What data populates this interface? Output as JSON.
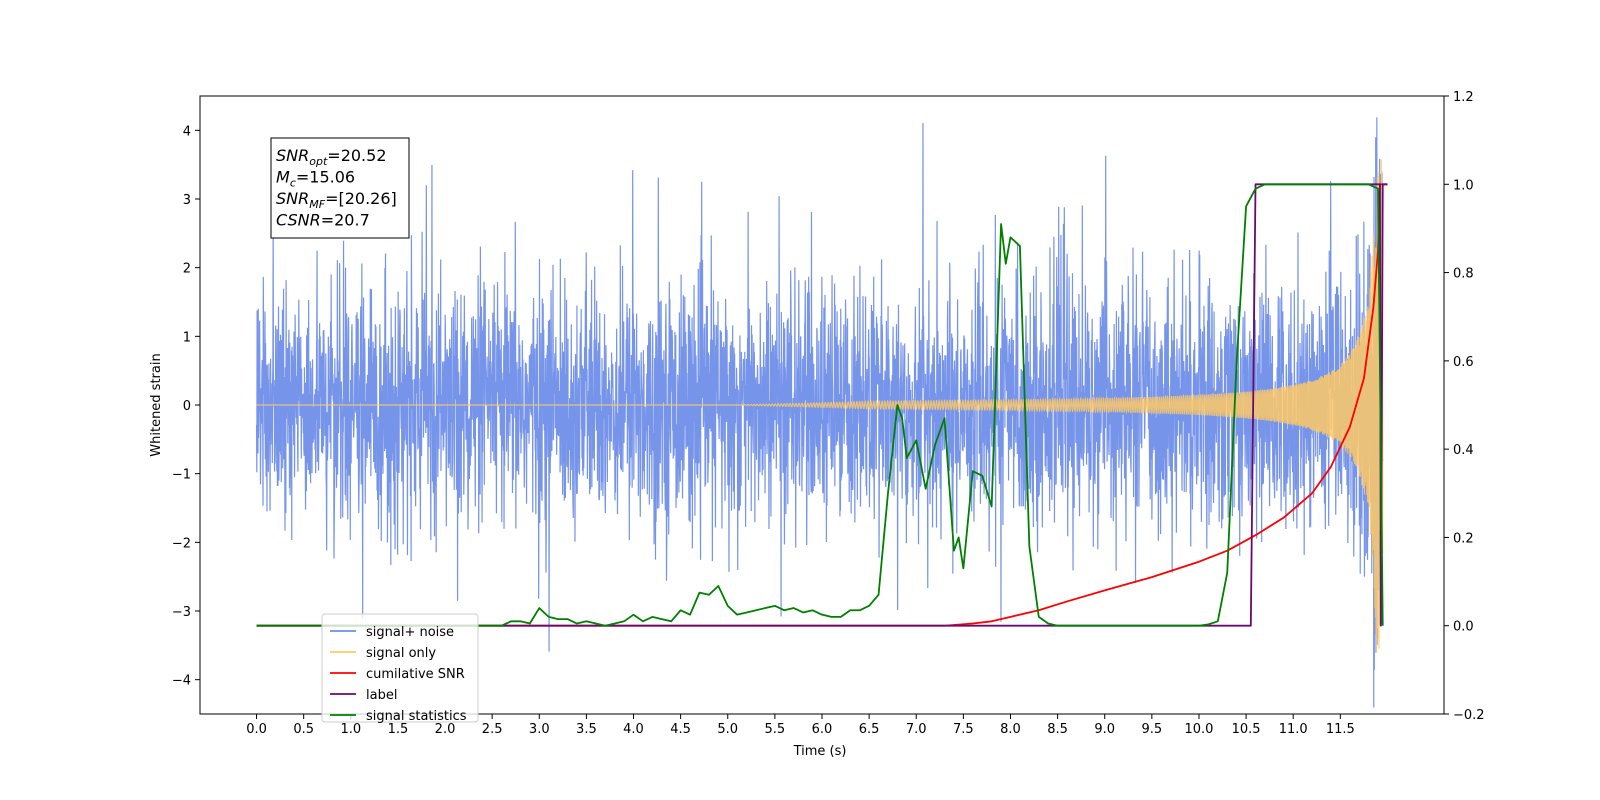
{
  "chart_data": {
    "type": "line",
    "xlabel": "Time (s)",
    "ylabel_left": "Whitened strain",
    "xlim": [
      -0.6,
      12.6
    ],
    "ylim_left": [
      -4.5,
      4.5
    ],
    "ylim_right": [
      -0.2,
      1.2
    ],
    "x_ticks": [
      0.0,
      0.5,
      1.0,
      1.5,
      2.0,
      2.5,
      3.0,
      3.5,
      4.0,
      4.5,
      5.0,
      5.5,
      6.0,
      6.5,
      7.0,
      7.5,
      8.0,
      8.5,
      9.0,
      9.5,
      10.0,
      10.5,
      11.0,
      11.5
    ],
    "x_tick_labels": [
      "0.0",
      "0.5",
      "1.0",
      "1.5",
      "2.0",
      "2.5",
      "3.0",
      "3.5",
      "4.0",
      "4.5",
      "5.0",
      "5.5",
      "6.0",
      "6.5",
      "7.0",
      "7.5",
      "8.0",
      "8.5",
      "9.0",
      "9.5",
      "10.0",
      "10.5",
      "11.0",
      "11.5"
    ],
    "y_ticks_left": [
      -4,
      -3,
      -2,
      -1,
      0,
      1,
      2,
      3,
      4
    ],
    "y_tick_labels_left": [
      "−4",
      "−3",
      "−2",
      "−1",
      "0",
      "1",
      "2",
      "3",
      "4"
    ],
    "y_ticks_right": [
      -0.2,
      0.0,
      0.2,
      0.4,
      0.6,
      0.8,
      1.0,
      1.2
    ],
    "y_tick_labels_right": [
      "−0.2",
      "0.0",
      "0.2",
      "0.4",
      "0.6",
      "0.8",
      "1.0",
      "1.2"
    ],
    "legend_position": "lower-left",
    "grid": false,
    "annotation": {
      "lines": [
        {
          "var": "SNR",
          "sub": "opt",
          "rest": "=20.52"
        },
        {
          "var": "M",
          "sub": "c",
          "rest": "=15.06"
        },
        {
          "var": "SNR",
          "sub": "MF",
          "rest": "=[20.26]"
        },
        {
          "var": "CSNR",
          "sub": "",
          "rest": "=20.7"
        }
      ]
    },
    "series": [
      {
        "name": "signal+ noise",
        "axis": "left",
        "color": "#6f8ee8",
        "description_range": {
          "x_start": 0.0,
          "x_end": 11.95,
          "typical_min": -2.0,
          "typical_max": 2.0,
          "peak_max": 4.07,
          "peak_min": -4.1
        }
      },
      {
        "name": "signal only",
        "axis": "left",
        "color": "#ffc966",
        "x_start": 0.0,
        "x_end": 11.95,
        "amplitude_final": 3.6
      },
      {
        "name": "cumilative SNR",
        "axis": "right",
        "color": "#ff0000",
        "x": [
          0.0,
          7.3,
          7.6,
          7.8,
          8.0,
          8.3,
          8.6,
          9.0,
          9.5,
          10.0,
          10.3,
          10.6,
          10.9,
          11.2,
          11.4,
          11.6,
          11.75,
          11.85,
          11.9,
          11.92,
          12.0
        ],
        "y": [
          0.0,
          0.0,
          0.005,
          0.01,
          0.02,
          0.035,
          0.055,
          0.08,
          0.11,
          0.145,
          0.17,
          0.205,
          0.245,
          0.3,
          0.36,
          0.45,
          0.56,
          0.72,
          0.85,
          1.0,
          1.0
        ]
      },
      {
        "name": "label",
        "axis": "right",
        "color": "#6a0a70",
        "x": [
          0.0,
          10.55,
          10.6,
          11.92,
          11.93,
          11.95,
          12.0
        ],
        "y": [
          0.0,
          0.0,
          1.0,
          1.0,
          0.0,
          1.0,
          1.0
        ]
      },
      {
        "name": "signal statistics",
        "axis": "right",
        "color": "#008000",
        "x": [
          0.0,
          2.6,
          2.7,
          2.8,
          2.9,
          3.0,
          3.1,
          3.2,
          3.3,
          3.4,
          3.5,
          3.6,
          3.7,
          3.8,
          3.9,
          4.0,
          4.1,
          4.2,
          4.3,
          4.4,
          4.5,
          4.6,
          4.7,
          4.8,
          4.9,
          5.0,
          5.1,
          5.2,
          5.3,
          5.4,
          5.5,
          5.6,
          5.7,
          5.8,
          5.9,
          6.0,
          6.1,
          6.2,
          6.3,
          6.4,
          6.5,
          6.6,
          6.7,
          6.8,
          6.85,
          6.9,
          7.0,
          7.1,
          7.2,
          7.3,
          7.4,
          7.45,
          7.5,
          7.6,
          7.7,
          7.8,
          7.9,
          7.95,
          8.0,
          8.1,
          8.2,
          8.3,
          8.4,
          8.5,
          9.0,
          10.0,
          10.1,
          10.2,
          10.3,
          10.4,
          10.5,
          10.6,
          10.7,
          10.8,
          10.9,
          11.0,
          11.5,
          11.8,
          11.9,
          11.95
        ],
        "y": [
          0.0,
          0.0,
          0.01,
          0.01,
          0.005,
          0.04,
          0.02,
          0.015,
          0.015,
          0.005,
          0.01,
          0.005,
          0.0,
          0.005,
          0.01,
          0.025,
          0.01,
          0.02,
          0.015,
          0.01,
          0.035,
          0.025,
          0.075,
          0.07,
          0.09,
          0.045,
          0.025,
          0.03,
          0.035,
          0.04,
          0.045,
          0.035,
          0.04,
          0.03,
          0.035,
          0.025,
          0.02,
          0.02,
          0.035,
          0.035,
          0.045,
          0.07,
          0.3,
          0.5,
          0.47,
          0.38,
          0.42,
          0.31,
          0.41,
          0.47,
          0.17,
          0.2,
          0.13,
          0.35,
          0.34,
          0.27,
          0.91,
          0.82,
          0.88,
          0.86,
          0.18,
          0.02,
          0.005,
          0.0,
          0.0,
          0.0,
          0.003,
          0.01,
          0.12,
          0.6,
          0.95,
          0.99,
          1.0,
          1.0,
          1.0,
          1.0,
          1.0,
          1.0,
          0.99,
          0.0
        ]
      }
    ]
  }
}
